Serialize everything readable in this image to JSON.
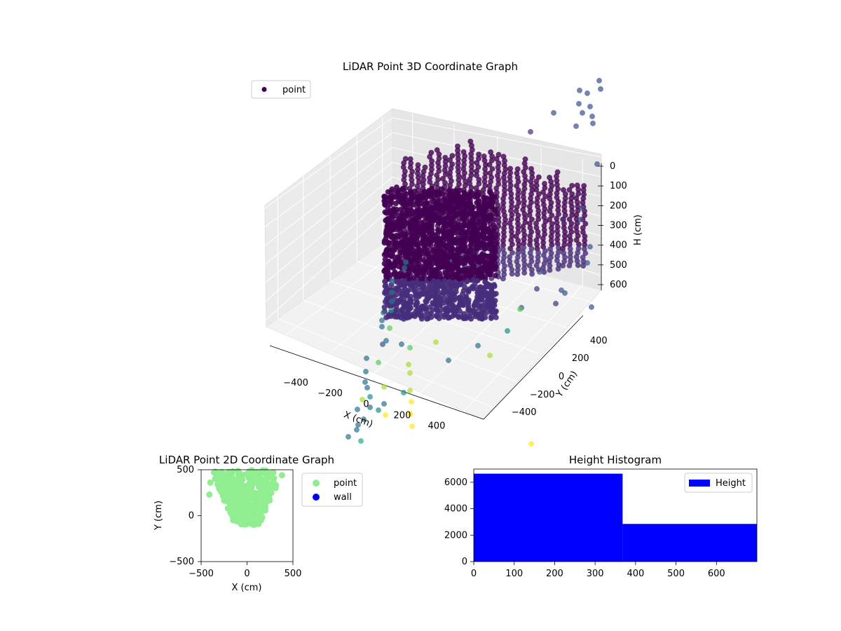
{
  "chart_data": [
    {
      "type": "scatter",
      "projection": "3d",
      "title": "LiDAR Point 3D Coordinate Graph",
      "xlabel": "X (cm)",
      "ylabel": "Y (cm)",
      "zlabel": "H (cm)",
      "xlim": [
        -500,
        500
      ],
      "ylim": [
        -500,
        500
      ],
      "zlim": [
        700,
        0
      ],
      "x_ticks": [
        "−400",
        "−200",
        "0",
        "200",
        "400"
      ],
      "y_ticks": [
        "−400",
        "−200",
        "0",
        "200",
        "400"
      ],
      "z_ticks": [
        "0",
        "100",
        "200",
        "300",
        "400",
        "500",
        "600"
      ],
      "colormap": "viridis",
      "legend": {
        "entries": [
          "point"
        ],
        "placement": "upper-left"
      },
      "grid": true
    },
    {
      "type": "scatter",
      "title": "LiDAR Point 2D Coordinate Graph",
      "xlabel": "X (cm)",
      "ylabel": "Y (cm)",
      "xlim": [
        -500,
        500
      ],
      "ylim": [
        -500,
        500
      ],
      "x_ticks": [
        "−500",
        "0",
        "500"
      ],
      "y_ticks": [
        "−500",
        "0",
        "500"
      ],
      "series": [
        {
          "name": "point",
          "color": "#90ee90"
        },
        {
          "name": "wall",
          "color": "#0000ff"
        }
      ],
      "legend": {
        "placement": "outside-right"
      },
      "grid": false
    },
    {
      "type": "bar",
      "title": "Height Histogram",
      "bins": [
        {
          "start": 0,
          "end": 368,
          "count": 6650
        },
        {
          "start": 368,
          "end": 700,
          "count": 2850
        }
      ],
      "xlim": [
        0,
        700
      ],
      "ylim": [
        0,
        7000
      ],
      "x_ticks": [
        "0",
        "100",
        "200",
        "300",
        "400",
        "500",
        "600"
      ],
      "y_ticks": [
        "0",
        "2000",
        "4000",
        "6000"
      ],
      "series": [
        {
          "name": "Height",
          "color": "#0000ff"
        }
      ],
      "legend": {
        "placement": "top-right"
      },
      "grid": false
    }
  ]
}
